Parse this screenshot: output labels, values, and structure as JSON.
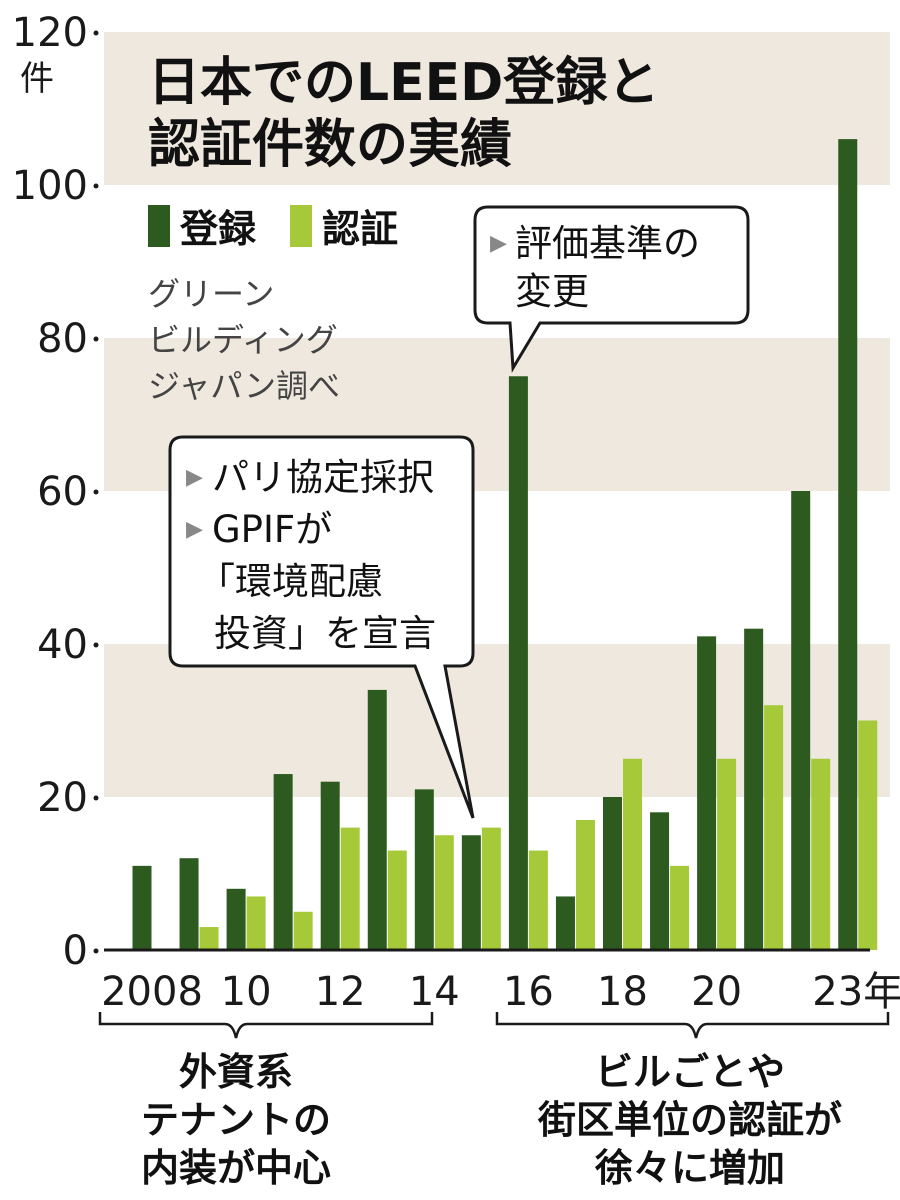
{
  "chart_data": {
    "type": "bar",
    "title_lines": [
      "日本でのLEED登録と",
      "認証件数の実績"
    ],
    "y_unit": "件",
    "ylim": [
      0,
      120
    ],
    "yticks": [
      "0",
      "20",
      "40",
      "60",
      "80",
      "100",
      "120"
    ],
    "x": [
      "2008",
      "2009",
      "2010",
      "2011",
      "2012",
      "2013",
      "2014",
      "2015",
      "2016",
      "2017",
      "2018",
      "2019",
      "2020",
      "2021",
      "2022",
      "2023"
    ],
    "x_tick_labels": [
      {
        "index": 0,
        "text": "2008"
      },
      {
        "index": 2,
        "text": "10"
      },
      {
        "index": 4,
        "text": "12"
      },
      {
        "index": 6,
        "text": "14"
      },
      {
        "index": 8,
        "text": "16"
      },
      {
        "index": 10,
        "text": "18"
      },
      {
        "index": 12,
        "text": "20"
      },
      {
        "index": 15,
        "text": "23年"
      }
    ],
    "series": [
      {
        "name": "登録",
        "color": "#2d5a1f",
        "values": [
          11,
          12,
          8,
          23,
          22,
          34,
          21,
          15,
          75,
          7,
          20,
          18,
          41,
          42,
          60,
          106
        ]
      },
      {
        "name": "認証",
        "color": "#a6c93a",
        "values": [
          0,
          3,
          7,
          5,
          16,
          13,
          15,
          16,
          13,
          17,
          25,
          11,
          25,
          32,
          25,
          30
        ]
      }
    ],
    "grid": "alternating horizontal bands",
    "band_color": "#efe8df",
    "legend_position": "top-left",
    "source_lines": [
      "グリーン",
      "ビルディング",
      "ジャパン調べ"
    ],
    "callouts": [
      {
        "lines": [
          "パリ協定採択",
          "GPIFが",
          "「環境配慮",
          "投資」を宣言"
        ],
        "bullets": [
          true,
          true,
          false,
          false
        ],
        "points_to": "2015"
      },
      {
        "lines": [
          "評価基準の",
          "変更"
        ],
        "bullets": [
          true,
          false
        ],
        "points_to": "2016"
      }
    ],
    "period_notes": [
      {
        "lines": [
          "外資系",
          "テナントの",
          "内装が中心"
        ],
        "range": [
          "2008",
          "2014"
        ]
      },
      {
        "lines": [
          "ビルごとや",
          "街区単位の認証が",
          "徐々に増加"
        ],
        "range": [
          "2016",
          "2023"
        ]
      }
    ]
  }
}
